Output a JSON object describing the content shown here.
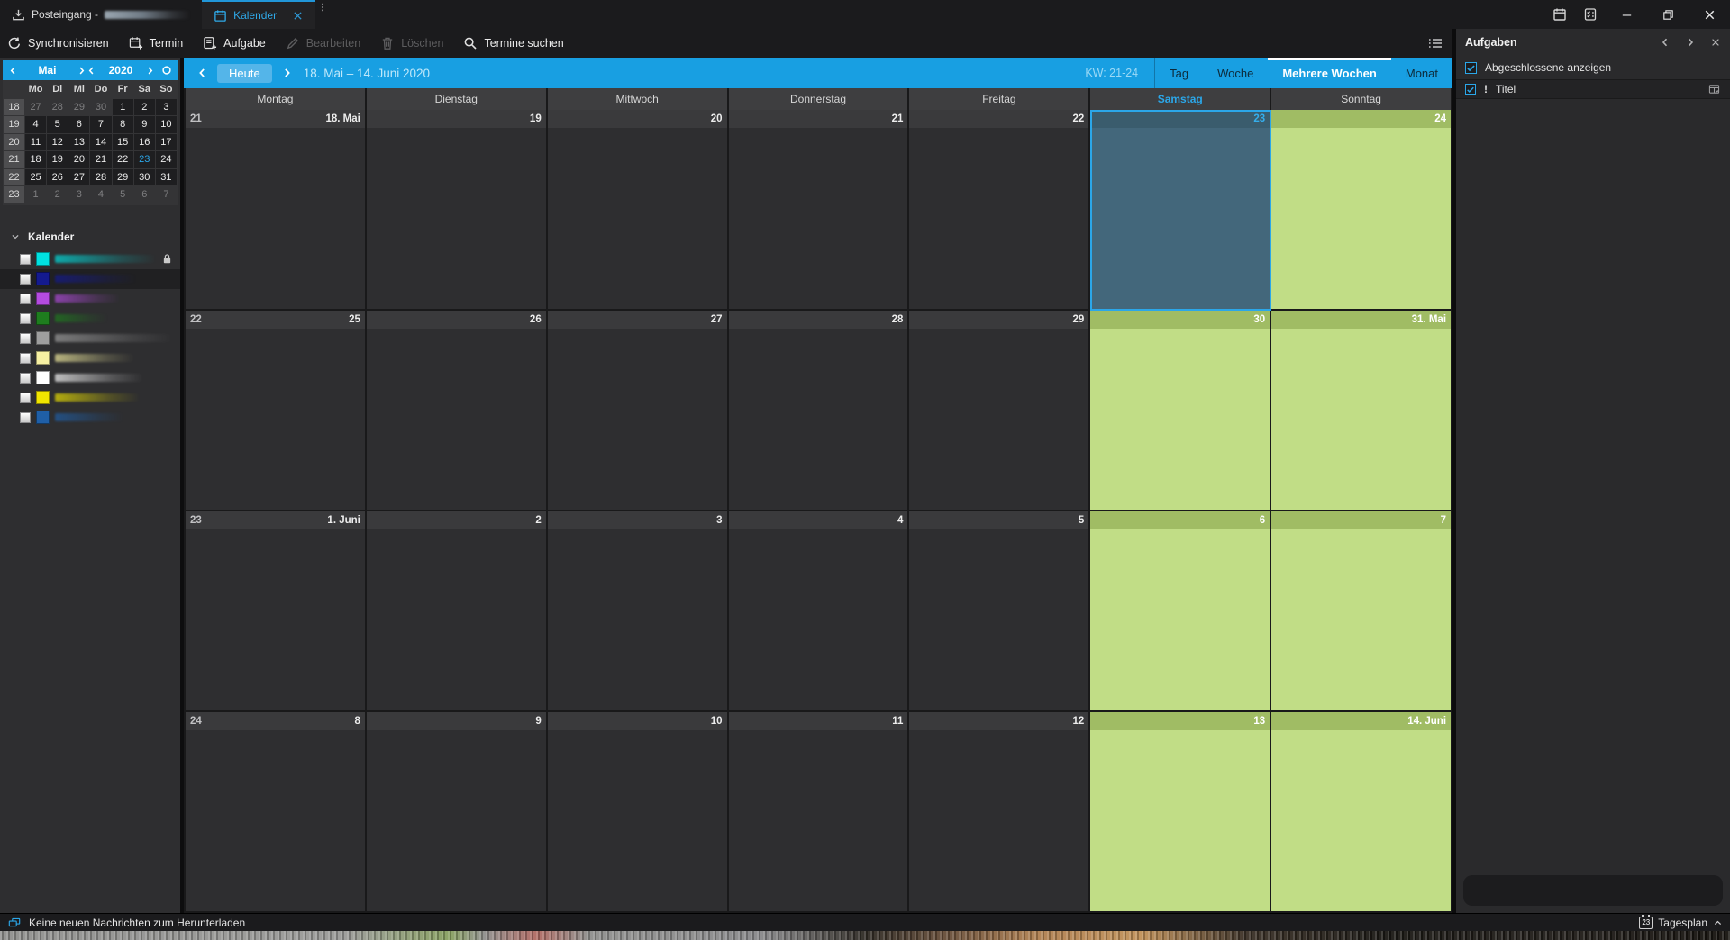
{
  "titlebar": {
    "tabs": [
      {
        "label": "Posteingang -",
        "icon": "download-tray-icon",
        "active": false,
        "redacted": true
      },
      {
        "label": "Kalender",
        "icon": "calendar-icon",
        "active": true
      }
    ],
    "quick_icons": [
      "calendar-icon",
      "tasks-icon"
    ],
    "window_controls": [
      "minimize",
      "restore",
      "close"
    ]
  },
  "toolbar": {
    "buttons": [
      {
        "label": "Synchronisieren",
        "icon": "sync",
        "enabled": true
      },
      {
        "label": "Termin",
        "icon": "new-event",
        "enabled": true
      },
      {
        "label": "Aufgabe",
        "icon": "new-task",
        "enabled": true
      },
      {
        "label": "Bearbeiten",
        "icon": "edit",
        "enabled": false
      },
      {
        "label": "Löschen",
        "icon": "trash",
        "enabled": false
      },
      {
        "label": "Termine suchen",
        "icon": "search",
        "enabled": true
      }
    ],
    "right_icon": "list-menu-icon"
  },
  "sidebar": {
    "minicalendar": {
      "month": "Mai",
      "year": "2020",
      "day_names": [
        "Mo",
        "Di",
        "Mi",
        "Do",
        "Fr",
        "Sa",
        "So"
      ],
      "weeks": [
        {
          "week": "18",
          "days": [
            {
              "d": "27",
              "out": true
            },
            {
              "d": "28",
              "out": true
            },
            {
              "d": "29",
              "out": true
            },
            {
              "d": "30",
              "out": true
            },
            {
              "d": "1"
            },
            {
              "d": "2"
            },
            {
              "d": "3"
            }
          ]
        },
        {
          "week": "19",
          "days": [
            {
              "d": "4"
            },
            {
              "d": "5"
            },
            {
              "d": "6"
            },
            {
              "d": "7"
            },
            {
              "d": "8"
            },
            {
              "d": "9"
            },
            {
              "d": "10"
            }
          ]
        },
        {
          "week": "20",
          "days": [
            {
              "d": "11"
            },
            {
              "d": "12"
            },
            {
              "d": "13"
            },
            {
              "d": "14"
            },
            {
              "d": "15"
            },
            {
              "d": "16"
            },
            {
              "d": "17"
            }
          ]
        },
        {
          "week": "21",
          "days": [
            {
              "d": "18"
            },
            {
              "d": "19"
            },
            {
              "d": "20"
            },
            {
              "d": "21"
            },
            {
              "d": "22"
            },
            {
              "d": "23",
              "today": true
            },
            {
              "d": "24"
            }
          ]
        },
        {
          "week": "22",
          "days": [
            {
              "d": "25"
            },
            {
              "d": "26"
            },
            {
              "d": "27"
            },
            {
              "d": "28"
            },
            {
              "d": "29"
            },
            {
              "d": "30"
            },
            {
              "d": "31"
            }
          ]
        },
        {
          "week": "23",
          "days": [
            {
              "d": "1",
              "out": true
            },
            {
              "d": "2",
              "out": true
            },
            {
              "d": "3",
              "out": true
            },
            {
              "d": "4",
              "out": true
            },
            {
              "d": "5",
              "out": true
            },
            {
              "d": "6",
              "out": true
            },
            {
              "d": "7",
              "out": true
            }
          ]
        }
      ]
    },
    "calendar_section": {
      "title": "Kalender",
      "items": [
        {
          "color": "#00e1e1",
          "locked": true,
          "selected": false
        },
        {
          "color": "#141a8f",
          "locked": false,
          "selected": true
        },
        {
          "color": "#b44be0",
          "locked": false,
          "selected": false
        },
        {
          "color": "#1e7d1e",
          "locked": false,
          "selected": false
        },
        {
          "color": "#9e9e9e",
          "locked": false,
          "selected": false
        },
        {
          "color": "#f6f0a2",
          "locked": false,
          "selected": false
        },
        {
          "color": "#ffffff",
          "locked": false,
          "selected": false
        },
        {
          "color": "#f0e500",
          "locked": false,
          "selected": false
        },
        {
          "color": "#1f5fa7",
          "locked": false,
          "selected": false
        }
      ]
    }
  },
  "view_header": {
    "today_label": "Heute",
    "range_label": "18. Mai – 14. Juni 2020",
    "week_label": "KW: 21-24",
    "view_tabs": [
      {
        "label": "Tag",
        "active": false
      },
      {
        "label": "Woche",
        "active": false
      },
      {
        "label": "Mehrere Wochen",
        "active": true
      },
      {
        "label": "Monat",
        "active": false
      }
    ]
  },
  "grid": {
    "day_headers": [
      {
        "label": "Montag"
      },
      {
        "label": "Dienstag"
      },
      {
        "label": "Mittwoch"
      },
      {
        "label": "Donnerstag"
      },
      {
        "label": "Freitag"
      },
      {
        "label": "Samstag",
        "today": true
      },
      {
        "label": "Sonntag"
      }
    ],
    "weeks": [
      {
        "kw": "21",
        "days": [
          {
            "label": "18. Mai"
          },
          {
            "label": "19"
          },
          {
            "label": "20"
          },
          {
            "label": "21"
          },
          {
            "label": "22"
          },
          {
            "label": "23",
            "kind": "today"
          },
          {
            "label": "24",
            "kind": "off"
          }
        ]
      },
      {
        "kw": "22",
        "days": [
          {
            "label": "25"
          },
          {
            "label": "26"
          },
          {
            "label": "27"
          },
          {
            "label": "28"
          },
          {
            "label": "29"
          },
          {
            "label": "30",
            "kind": "off"
          },
          {
            "label": "31. Mai",
            "kind": "off"
          }
        ]
      },
      {
        "kw": "23",
        "days": [
          {
            "label": "1. Juni"
          },
          {
            "label": "2"
          },
          {
            "label": "3"
          },
          {
            "label": "4"
          },
          {
            "label": "5"
          },
          {
            "label": "6",
            "kind": "off"
          },
          {
            "label": "7",
            "kind": "off"
          }
        ]
      },
      {
        "kw": "24",
        "days": [
          {
            "label": "8"
          },
          {
            "label": "9"
          },
          {
            "label": "10"
          },
          {
            "label": "11"
          },
          {
            "label": "12"
          },
          {
            "label": "13",
            "kind": "off"
          },
          {
            "label": "14. Juni",
            "kind": "off"
          }
        ]
      }
    ]
  },
  "tasks_panel": {
    "title": "Aufgaben",
    "show_completed_label": "Abgeschlossene anzeigen",
    "columns": {
      "priority": "!",
      "title": "Titel"
    }
  },
  "status_bar": {
    "message": "Keine neuen Nachrichten zum Herunterladen",
    "day_plan_day": "23",
    "day_plan_label": "Tagesplan"
  },
  "colors": {
    "accent_blue": "#189fe2",
    "today_cell": "#43677b",
    "offday_cell": "#c1dd86",
    "today_text": "#2ba7e9"
  }
}
